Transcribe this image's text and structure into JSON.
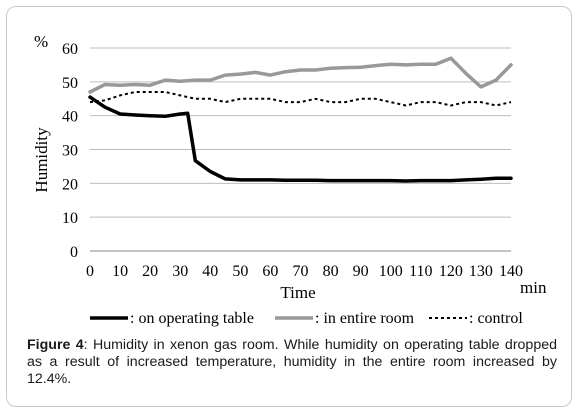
{
  "chart_data": {
    "type": "line",
    "unit_label": "%",
    "xlabel": "Time",
    "xunit": "min",
    "ylabel": "Humidity",
    "xlim": [
      0,
      140
    ],
    "ylim": [
      0,
      60
    ],
    "xticks": [
      "0",
      "10",
      "20",
      "30",
      "40",
      "50",
      "60",
      "70",
      "80",
      "90",
      "100",
      "110",
      "120",
      "130",
      "140"
    ],
    "yticks": [
      "0",
      "10",
      "20",
      "30",
      "40",
      "50",
      "60"
    ],
    "grid": "horizontal",
    "legend_position": "bottom",
    "series": [
      {
        "name": ": on operating table",
        "color": "#000000",
        "style": "solid-thick",
        "x": [
          0,
          5,
          10,
          15,
          20,
          25,
          30,
          32.5,
          35,
          40,
          45,
          50,
          55,
          60,
          65,
          70,
          75,
          80,
          85,
          90,
          95,
          100,
          105,
          110,
          115,
          120,
          125,
          130,
          135,
          140
        ],
        "y": [
          45.5,
          42.5,
          40.5,
          40.2,
          40,
          39.8,
          40.5,
          40.7,
          26.7,
          23.5,
          21.3,
          21,
          21,
          21,
          20.9,
          20.9,
          20.9,
          20.8,
          20.8,
          20.8,
          20.8,
          20.8,
          20.7,
          20.8,
          20.8,
          20.8,
          21,
          21.2,
          21.5,
          21.5
        ]
      },
      {
        "name": ": in entire room",
        "color": "#999999",
        "style": "solid-thick",
        "x": [
          0,
          5,
          10,
          15,
          20,
          25,
          30,
          35,
          40,
          45,
          50,
          55,
          60,
          65,
          70,
          75,
          80,
          85,
          90,
          95,
          100,
          105,
          110,
          115,
          120,
          125,
          130,
          135,
          140
        ],
        "y": [
          47,
          49.2,
          49,
          49.2,
          49,
          50.5,
          50.2,
          50.5,
          50.5,
          52,
          52.3,
          52.8,
          52,
          53,
          53.5,
          53.5,
          54,
          54.2,
          54.3,
          54.8,
          55.2,
          55,
          55.2,
          55.2,
          57,
          52.5,
          48.5,
          50.5,
          55
        ]
      },
      {
        "name": ": control",
        "color": "#000000",
        "style": "dashed",
        "x": [
          0,
          5,
          10,
          15,
          20,
          25,
          30,
          35,
          40,
          45,
          50,
          55,
          60,
          65,
          70,
          75,
          80,
          85,
          90,
          95,
          100,
          105,
          110,
          115,
          120,
          125,
          130,
          135,
          140
        ],
        "y": [
          44,
          44.5,
          46,
          47,
          47,
          47,
          46,
          45,
          45,
          44,
          45,
          45,
          45,
          44,
          44,
          45,
          44,
          44,
          45,
          45,
          44,
          43,
          44,
          44,
          43,
          44,
          44,
          43,
          44
        ]
      }
    ]
  },
  "caption": {
    "label": "Figure 4",
    "text": ": Humidity in xenon gas room. While humidity on operating table dropped as a result of increased temperature, humidity in the entire room increased by 12.4%."
  }
}
